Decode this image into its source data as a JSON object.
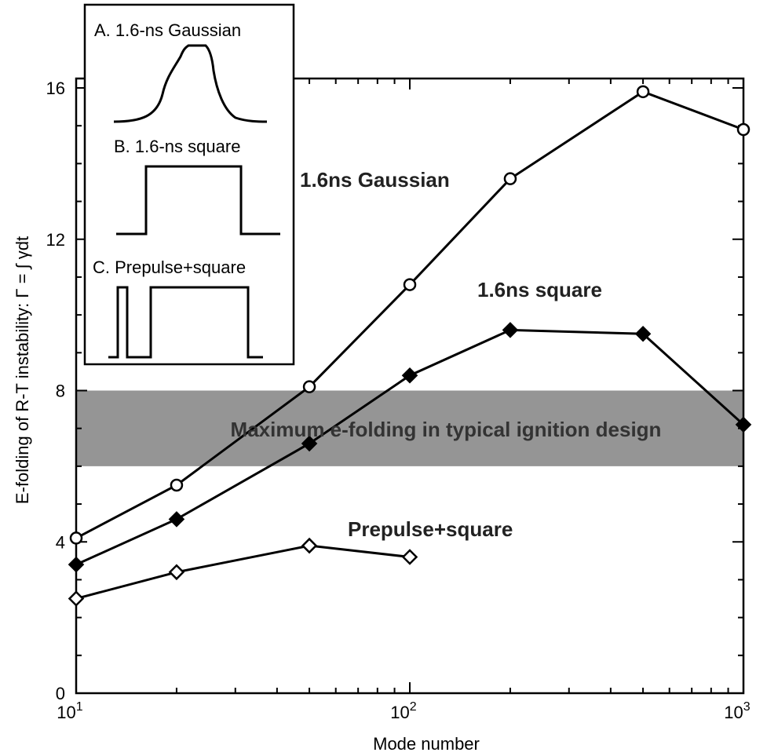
{
  "chart_data": {
    "type": "line",
    "xlabel": "Mode number",
    "ylabel": "E-folding of R-T instability: Γ = ∫ γdt",
    "xscale": "log",
    "xlim": [
      10,
      1000
    ],
    "ylim": [
      0,
      17
    ],
    "y_ticks": [
      0,
      4,
      8,
      12,
      16
    ],
    "x_ticks": [
      {
        "base": "10",
        "exp": "1"
      },
      {
        "base": "10",
        "exp": "2"
      },
      {
        "base": "10",
        "exp": "3"
      }
    ],
    "grid": false,
    "series": [
      {
        "name": "1.6ns Gaussian",
        "marker": "circle-open",
        "x": [
          10,
          20,
          50,
          100,
          200,
          500,
          1000
        ],
        "y": [
          4.1,
          5.5,
          8.1,
          10.8,
          13.6,
          15.9,
          14.9
        ]
      },
      {
        "name": "1.6ns square",
        "marker": "diamond-filled",
        "x": [
          10,
          20,
          50,
          100,
          200,
          500,
          1000
        ],
        "y": [
          3.4,
          4.6,
          6.6,
          8.4,
          9.6,
          9.5,
          7.1
        ]
      },
      {
        "name": "Prepulse+square",
        "marker": "diamond-open",
        "x": [
          10,
          20,
          50,
          100
        ],
        "y": [
          2.5,
          3.2,
          3.9,
          3.6
        ]
      }
    ],
    "band": {
      "y_range": [
        6,
        8
      ],
      "label": "Maximum e-folding in typical ignition design",
      "color": "#8a8a8a"
    },
    "inset": {
      "labels": [
        "A. 1.6-ns Gaussian",
        "B. 1.6-ns square",
        "C. Prepulse+square"
      ]
    }
  }
}
